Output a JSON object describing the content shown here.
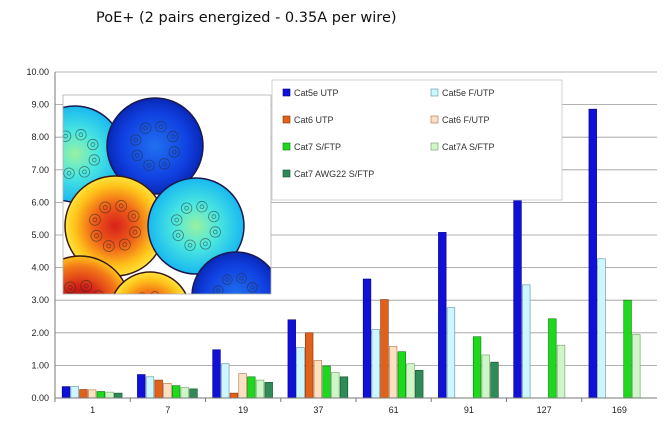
{
  "caption": "PoE+ (2 pairs energized  - 0.35A per wire)",
  "chart_data": {
    "type": "bar",
    "title": "",
    "xlabel": "",
    "ylabel": "",
    "ylim": [
      0,
      10
    ],
    "yticks": [
      "0.00",
      "1.00",
      "2.00",
      "3.00",
      "4.00",
      "5.00",
      "6.00",
      "7.00",
      "8.00",
      "9.00",
      "10.00"
    ],
    "grid": true,
    "legend_placement": "top-center, two columns",
    "categories": [
      "1",
      "7",
      "19",
      "37",
      "61",
      "91",
      "127",
      "169"
    ],
    "series": [
      {
        "name": "Cat5e UTP",
        "color": "#1010d8",
        "edge": "#000080",
        "values": [
          0.35,
          0.72,
          1.48,
          2.4,
          3.65,
          5.08,
          6.07,
          8.86
        ]
      },
      {
        "name": "Cat5e  F/UTP",
        "color": "#cdf6ff",
        "edge": "#5b8fa0",
        "values": [
          0.35,
          0.65,
          1.05,
          1.55,
          2.1,
          2.77,
          3.47,
          4.27
        ]
      },
      {
        "name": "Cat6 UTP",
        "color": "#e0621a",
        "edge": "#8a3008",
        "values": [
          0.26,
          0.55,
          0.15,
          2.0,
          3.02,
          null,
          null,
          null
        ]
      },
      {
        "name": "Cat6 F/UTP",
        "color": "#fbe0c4",
        "edge": "#b07040",
        "values": [
          0.25,
          0.45,
          0.75,
          1.15,
          1.58,
          null,
          null,
          null
        ]
      },
      {
        "name": "Cat7 S/FTP",
        "color": "#1ed81e",
        "edge": "#0a7a0a",
        "values": [
          0.2,
          0.38,
          0.65,
          0.98,
          1.42,
          1.88,
          2.43,
          3.0
        ]
      },
      {
        "name": "Cat7A S/FTP",
        "color": "#cff5c8",
        "edge": "#6aa060",
        "values": [
          0.18,
          0.32,
          0.55,
          0.78,
          1.05,
          1.32,
          1.62,
          1.95
        ]
      },
      {
        "name": "Cat7 AWG22 S/FTP",
        "color": "#2e8b57",
        "edge": "#14502e",
        "values": [
          0.15,
          0.28,
          0.48,
          0.65,
          0.85,
          1.1,
          null,
          null
        ]
      }
    ]
  }
}
